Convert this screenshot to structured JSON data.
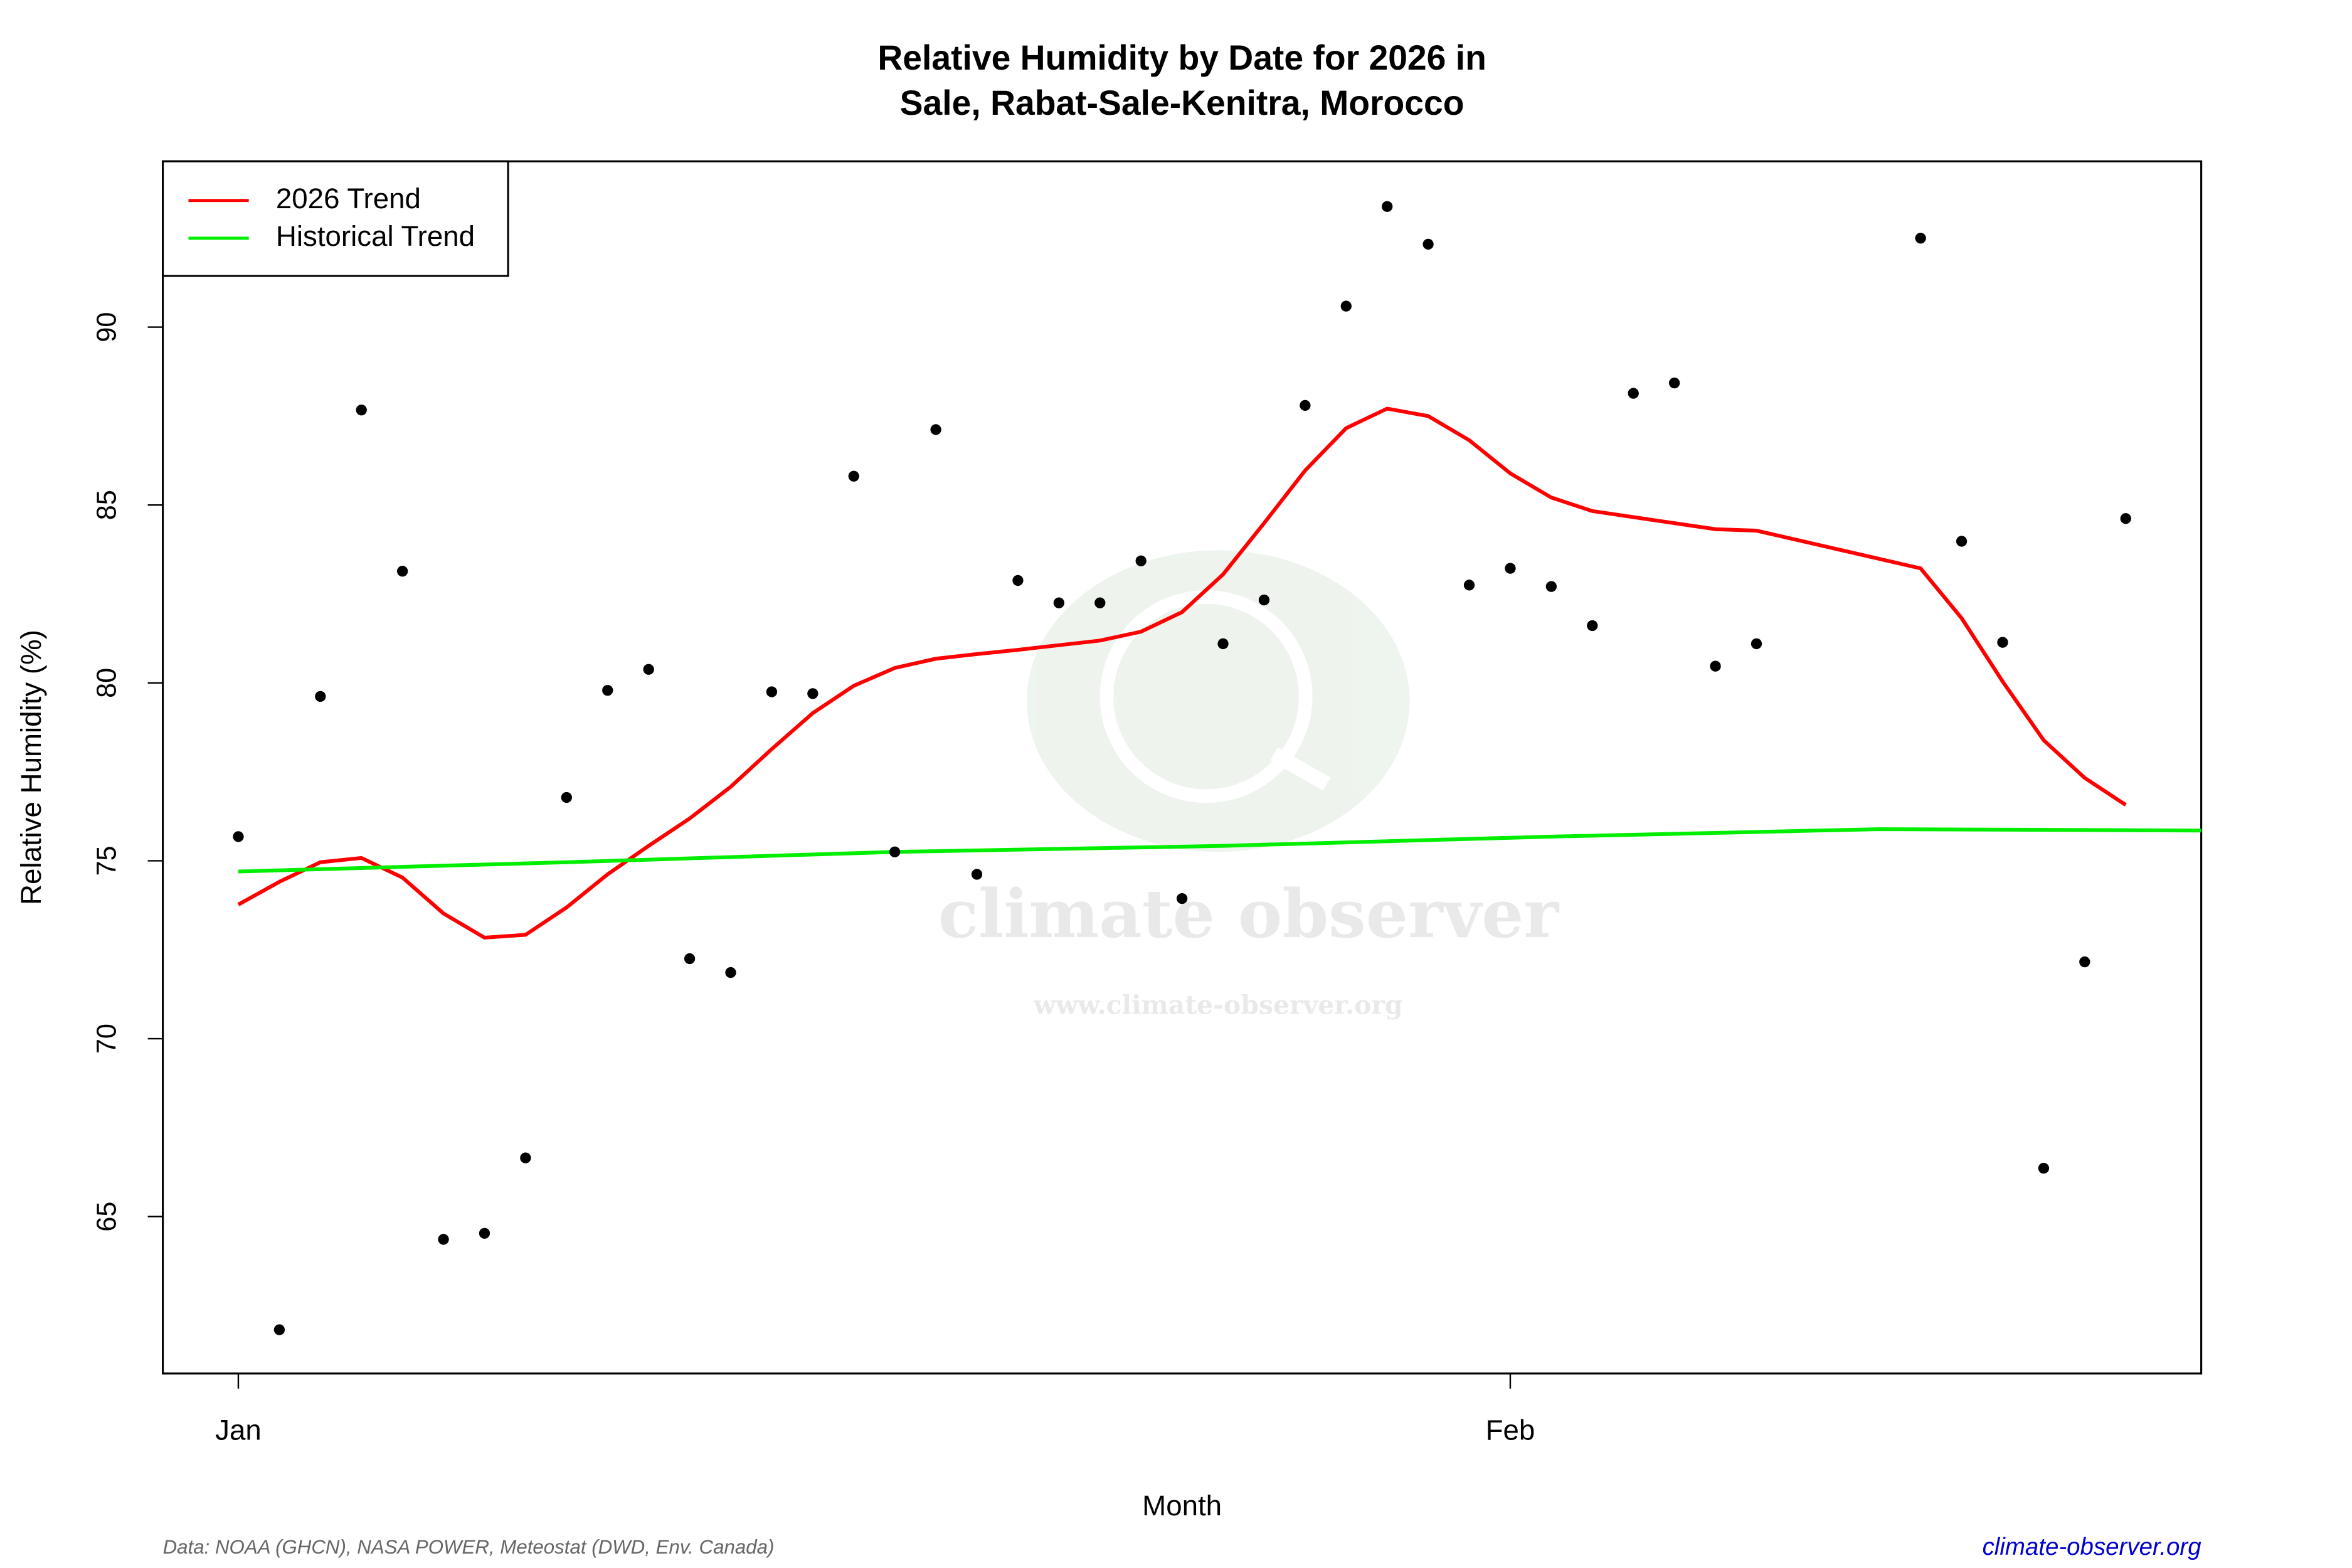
{
  "chart_data": {
    "type": "scatter",
    "title": "Relative Humidity by Date for 2026 in",
    "subtitle": "Sale, Rabat-Sale-Kenitra, Morocco",
    "x_label": "Month",
    "y_label": "Relative Humidity (%)",
    "xlim": [
      -0.84,
      48.84
    ],
    "ylim": [
      60.59,
      94.66
    ],
    "xticks": [
      {
        "value": 1,
        "label": "Jan"
      },
      {
        "value": 32,
        "label": "Feb"
      }
    ],
    "yticks": [
      65,
      70,
      75,
      80,
      85,
      90
    ],
    "legend": "top-left",
    "points": {
      "color": "#000000",
      "x": [
        1,
        2,
        3,
        4,
        5,
        6,
        7,
        8,
        9,
        10,
        11,
        12,
        13,
        14,
        15,
        16,
        17,
        18,
        19,
        20,
        21,
        22,
        23,
        24,
        25,
        26,
        27,
        28,
        29,
        30,
        31,
        32,
        33,
        34,
        35,
        36,
        37,
        38,
        42,
        43,
        44,
        45,
        46,
        47
      ],
      "values": [
        75.68,
        61.82,
        79.62,
        87.67,
        83.14,
        64.36,
        64.53,
        66.65,
        76.78,
        79.79,
        80.38,
        72.25,
        71.86,
        79.75,
        79.7,
        85.81,
        75.25,
        87.12,
        74.62,
        82.88,
        82.25,
        82.25,
        83.43,
        73.94,
        81.1,
        82.33,
        87.8,
        90.59,
        93.39,
        92.33,
        82.75,
        83.22,
        82.71,
        81.61,
        88.14,
        88.43,
        80.47,
        81.1,
        92.5,
        83.98,
        81.14,
        66.36,
        72.16,
        84.62
      ]
    },
    "series": [
      {
        "name": "2026 Trend",
        "color": "#ff0000",
        "x": [
          1,
          2,
          3,
          4,
          5,
          6,
          7,
          8,
          9,
          10,
          11,
          12,
          13,
          14,
          15,
          16,
          17,
          18,
          19,
          20,
          21,
          22,
          23,
          24,
          25,
          26,
          27,
          28,
          29,
          30,
          31,
          32,
          33,
          34,
          35,
          36,
          37,
          38,
          42,
          43,
          44,
          45,
          46,
          47
        ],
        "values": [
          73.77,
          74.41,
          74.96,
          75.08,
          74.53,
          73.52,
          72.84,
          72.92,
          73.69,
          74.62,
          75.42,
          76.19,
          77.08,
          78.14,
          79.15,
          79.92,
          80.42,
          80.68,
          80.81,
          80.93,
          81.06,
          81.19,
          81.44,
          81.99,
          83.05,
          84.49,
          85.97,
          87.16,
          87.71,
          87.5,
          86.82,
          85.89,
          85.21,
          84.83,
          84.66,
          84.49,
          84.32,
          84.28,
          83.22,
          81.82,
          80.04,
          78.39,
          77.33,
          76.57
        ]
      },
      {
        "name": "Historical Trend",
        "color": "#00ee00",
        "x": [
          1,
          9,
          17,
          25,
          33,
          41,
          49
        ],
        "values": [
          74.7,
          74.96,
          75.25,
          75.42,
          75.68,
          75.89,
          75.85
        ]
      }
    ],
    "watermark": {
      "title": "climate observer",
      "url": "www.climate-observer.org"
    },
    "source": "Data: NOAA (GHCN), NASA POWER, Meteostat (DWD, Env. Canada)",
    "site": "climate-observer.org"
  }
}
